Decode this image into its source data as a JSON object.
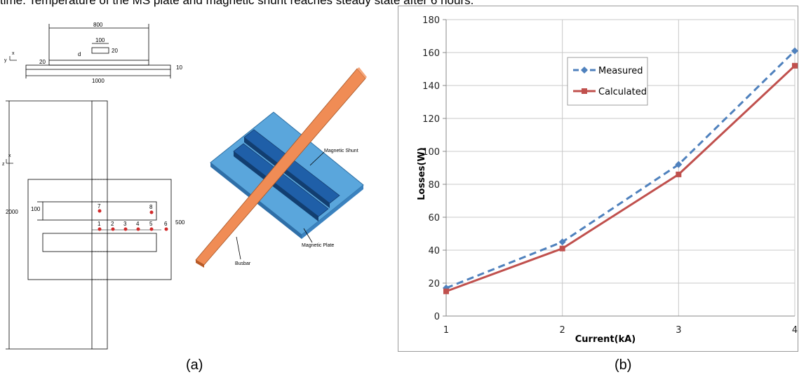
{
  "top_caption": "time. Temperature of the MS plate and magnetic shunt reaches steady state after 6 hours.",
  "panel_a": {
    "label": "(a)",
    "dimensions": {
      "d800": "800",
      "d100": "100",
      "d20a": "20",
      "d20b": "20",
      "d_label": "d",
      "d10": "10",
      "d1000": "1000",
      "d2000": "2000",
      "d100b": "100",
      "d500": "500",
      "axis_y": "y",
      "axis_x": "x",
      "axis_z": "z",
      "axis_x2": "x"
    },
    "points_top": [
      "7",
      "8"
    ],
    "points_bottom": [
      "1",
      "2",
      "3",
      "4",
      "5",
      "6"
    ],
    "labels": {
      "shunt": "Magnetic Shunt",
      "plate": "Magnetic Plate",
      "busbar": "Busbar"
    },
    "colors": {
      "plate": "#5aa6dc",
      "shunt": "#1f5fa8",
      "busbar": "#f08c55",
      "points": "#d12a2a"
    }
  },
  "panel_b": {
    "label": "(b)"
  },
  "chart_data": {
    "type": "line",
    "x": [
      1,
      2,
      3,
      4
    ],
    "xlabel": "Current(kA)",
    "ylabel": "Losses(W)",
    "ylim": [
      0,
      180
    ],
    "yticks": [
      0,
      20,
      40,
      60,
      80,
      100,
      120,
      140,
      160,
      180
    ],
    "grid": true,
    "legend_position": "upper-left",
    "series": [
      {
        "name": "Measured",
        "values": [
          17,
          45,
          92,
          161
        ],
        "color": "#4f81bd",
        "style": "dashed",
        "marker": "diamond"
      },
      {
        "name": "Calculated",
        "values": [
          15,
          41,
          86,
          152
        ],
        "color": "#c0504d",
        "style": "solid",
        "marker": "square"
      }
    ]
  }
}
